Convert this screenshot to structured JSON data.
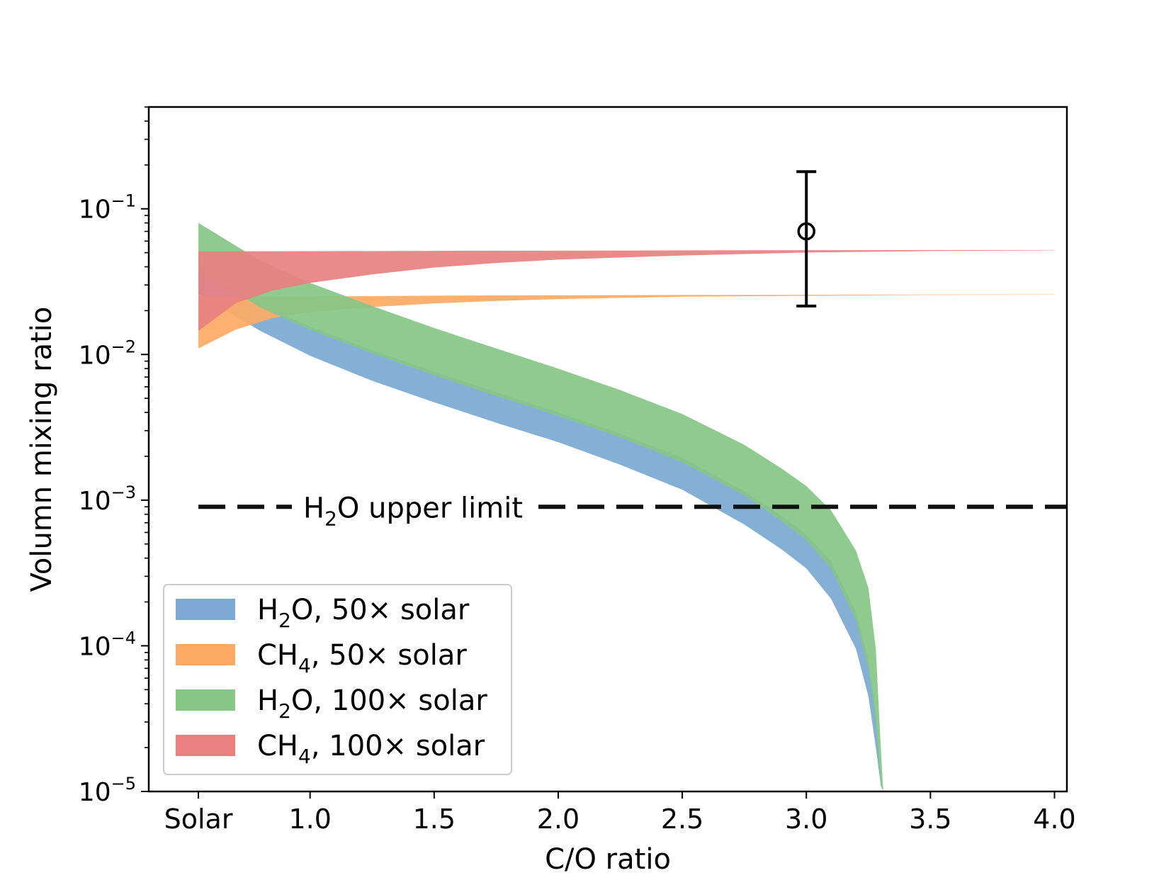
{
  "chart_data": {
    "type": "area",
    "xlabel": "C/O ratio",
    "ylabel": "Volumn mixing ratio",
    "y_scale": "log",
    "xlim": [
      0.35,
      4.05
    ],
    "ylim": [
      1e-05,
      0.5
    ],
    "x_ticks": [
      {
        "value": 0.55,
        "label": "Solar"
      },
      {
        "value": 1.0,
        "label": "1.0"
      },
      {
        "value": 1.5,
        "label": "1.5"
      },
      {
        "value": 2.0,
        "label": "2.0"
      },
      {
        "value": 2.5,
        "label": "2.5"
      },
      {
        "value": 3.0,
        "label": "3.0"
      },
      {
        "value": 3.5,
        "label": "3.5"
      },
      {
        "value": 4.0,
        "label": "4.0"
      }
    ],
    "y_ticks": [
      {
        "value": 1e-05,
        "base": "10",
        "exp": "−5"
      },
      {
        "value": 0.0001,
        "base": "10",
        "exp": "−4"
      },
      {
        "value": 0.001,
        "base": "10",
        "exp": "−3"
      },
      {
        "value": 0.01,
        "base": "10",
        "exp": "−2"
      },
      {
        "value": 0.1,
        "base": "10",
        "exp": "−1"
      }
    ],
    "legend_position": "lower-left",
    "series": [
      {
        "name": "H₂O, 50× solar",
        "legend": {
          "pre": "H",
          "sub": "2",
          "post": "O, 50× solar"
        },
        "color": "#7ba9d2",
        "upper": [
          [
            0.55,
            0.038
          ],
          [
            0.8,
            0.022
          ],
          [
            1.0,
            0.0155
          ],
          [
            1.25,
            0.0107
          ],
          [
            1.5,
            0.0076
          ],
          [
            1.75,
            0.0055
          ],
          [
            2.0,
            0.004
          ],
          [
            2.25,
            0.00285
          ],
          [
            2.5,
            0.00195
          ],
          [
            2.75,
            0.00115
          ],
          [
            2.9,
            0.00078
          ],
          [
            3.0,
            0.00058
          ],
          [
            3.1,
            0.00038
          ],
          [
            3.2,
            0.00017
          ],
          [
            3.25,
            8e-05
          ],
          [
            3.28,
            3.5e-05
          ],
          [
            3.3,
            1.2e-05
          ],
          [
            3.31,
            1e-05
          ]
        ],
        "lower": [
          [
            0.55,
            0.026
          ],
          [
            0.8,
            0.0145
          ],
          [
            1.0,
            0.0098
          ],
          [
            1.25,
            0.0066
          ],
          [
            1.5,
            0.0047
          ],
          [
            1.75,
            0.0034
          ],
          [
            2.0,
            0.0025
          ],
          [
            2.25,
            0.00175
          ],
          [
            2.5,
            0.00118
          ],
          [
            2.75,
            0.00068
          ],
          [
            2.9,
            0.00046
          ],
          [
            3.0,
            0.00034
          ],
          [
            3.1,
            0.00021
          ],
          [
            3.2,
            9.5e-05
          ],
          [
            3.25,
            4.5e-05
          ],
          [
            3.28,
            2e-05
          ],
          [
            3.3,
            1.1e-05
          ],
          [
            3.31,
            1e-05
          ]
        ]
      },
      {
        "name": "CH₄, 50× solar",
        "legend": {
          "pre": "CH",
          "sub": "4",
          "post": ", 50× solar"
        },
        "color": "#fdaa65",
        "upper": [
          [
            0.55,
            0.025
          ],
          [
            1.0,
            0.025
          ],
          [
            1.5,
            0.0253
          ],
          [
            2.0,
            0.0255
          ],
          [
            2.5,
            0.0256
          ],
          [
            3.0,
            0.0257
          ],
          [
            3.5,
            0.0258
          ],
          [
            4.0,
            0.0258
          ]
        ],
        "lower": [
          [
            0.55,
            0.011
          ],
          [
            0.7,
            0.0148
          ],
          [
            0.85,
            0.0178
          ],
          [
            1.0,
            0.0195
          ],
          [
            1.25,
            0.0212
          ],
          [
            1.5,
            0.0224
          ],
          [
            1.75,
            0.0233
          ],
          [
            2.0,
            0.024
          ],
          [
            2.5,
            0.0249
          ],
          [
            3.0,
            0.0253
          ],
          [
            3.5,
            0.0256
          ],
          [
            4.0,
            0.0257
          ]
        ]
      },
      {
        "name": "H₂O, 100× solar",
        "legend": {
          "pre": "H",
          "sub": "2",
          "post": "O, 100× solar"
        },
        "color": "#86c686",
        "upper": [
          [
            0.55,
            0.08
          ],
          [
            0.8,
            0.044
          ],
          [
            1.0,
            0.031
          ],
          [
            1.25,
            0.0215
          ],
          [
            1.5,
            0.0152
          ],
          [
            1.75,
            0.011
          ],
          [
            2.0,
            0.008
          ],
          [
            2.25,
            0.0057
          ],
          [
            2.5,
            0.0039
          ],
          [
            2.75,
            0.0024
          ],
          [
            2.9,
            0.00165
          ],
          [
            3.0,
            0.00125
          ],
          [
            3.1,
            0.00085
          ],
          [
            3.2,
            0.00045
          ],
          [
            3.25,
            0.00025
          ],
          [
            3.28,
            9.5e-05
          ],
          [
            3.3,
            2e-05
          ],
          [
            3.31,
            1e-05
          ]
        ],
        "lower": [
          [
            0.55,
            0.038
          ],
          [
            0.8,
            0.021
          ],
          [
            1.0,
            0.0148
          ],
          [
            1.25,
            0.0102
          ],
          [
            1.5,
            0.0072
          ],
          [
            1.75,
            0.0052
          ],
          [
            2.0,
            0.0038
          ],
          [
            2.25,
            0.0027
          ],
          [
            2.5,
            0.00182
          ],
          [
            2.75,
            0.00108
          ],
          [
            2.9,
            0.00072
          ],
          [
            3.0,
            0.00053
          ],
          [
            3.1,
            0.00034
          ],
          [
            3.2,
            0.00015
          ],
          [
            3.25,
            7e-05
          ],
          [
            3.28,
            3e-05
          ],
          [
            3.3,
            1.1e-05
          ],
          [
            3.31,
            1e-05
          ]
        ]
      },
      {
        "name": "CH₄, 100× solar",
        "legend": {
          "pre": "CH",
          "sub": "4",
          "post": ", 100× solar"
        },
        "color": "#e88080",
        "upper": [
          [
            0.55,
            0.051
          ],
          [
            1.0,
            0.0512
          ],
          [
            1.5,
            0.0514
          ],
          [
            2.0,
            0.0516
          ],
          [
            2.5,
            0.0518
          ],
          [
            3.0,
            0.052
          ],
          [
            3.5,
            0.0521
          ],
          [
            4.0,
            0.0521
          ]
        ],
        "lower": [
          [
            0.55,
            0.0145
          ],
          [
            0.7,
            0.0225
          ],
          [
            0.85,
            0.0275
          ],
          [
            1.0,
            0.031
          ],
          [
            1.25,
            0.0355
          ],
          [
            1.5,
            0.0395
          ],
          [
            1.75,
            0.0425
          ],
          [
            2.0,
            0.0448
          ],
          [
            2.5,
            0.0478
          ],
          [
            3.0,
            0.0501
          ],
          [
            3.5,
            0.0513
          ],
          [
            4.0,
            0.0518
          ]
        ]
      }
    ],
    "reference_line": {
      "y": 0.0009,
      "x_range": [
        0.55,
        4.05
      ],
      "style": "dashed",
      "color": "#111111",
      "label": {
        "pre": "H",
        "sub": "2",
        "post": "O upper limit"
      }
    },
    "measurement": {
      "x": 3.0,
      "y": 0.07,
      "y_low": 0.0215,
      "y_high": 0.18
    }
  }
}
